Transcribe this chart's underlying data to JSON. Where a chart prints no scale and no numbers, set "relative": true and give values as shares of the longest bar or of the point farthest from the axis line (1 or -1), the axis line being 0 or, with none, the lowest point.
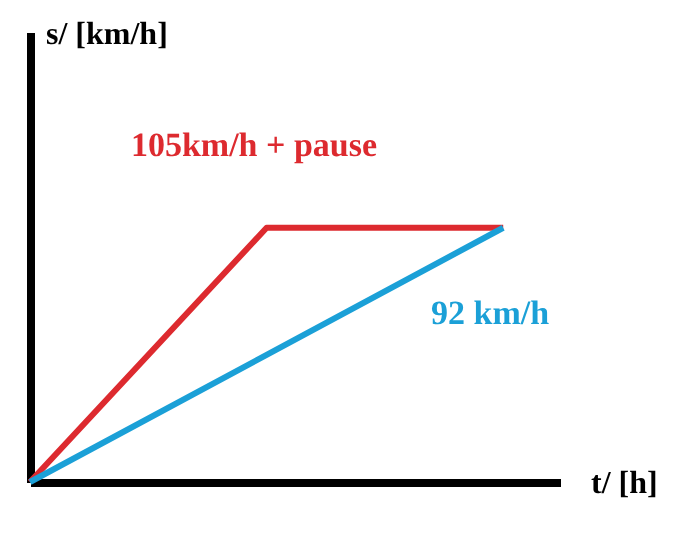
{
  "chart_data": {
    "type": "line",
    "relative": true,
    "xlabel": "t/  [h]",
    "annotations": [
      "s/  [km/h]"
    ],
    "categories": [
      null,
      null,
      null
    ],
    "series": [
      {
        "name": "105km/h + pause",
        "color": "#dd2a2f",
        "values": [
          0,
          1,
          1
        ]
      },
      {
        "name": "92 km/h",
        "color": "#1ba0d7",
        "values": [
          0,
          0.5,
          1
        ]
      }
    ],
    "grid": false,
    "marker": "none",
    "line_style": "solid"
  }
}
